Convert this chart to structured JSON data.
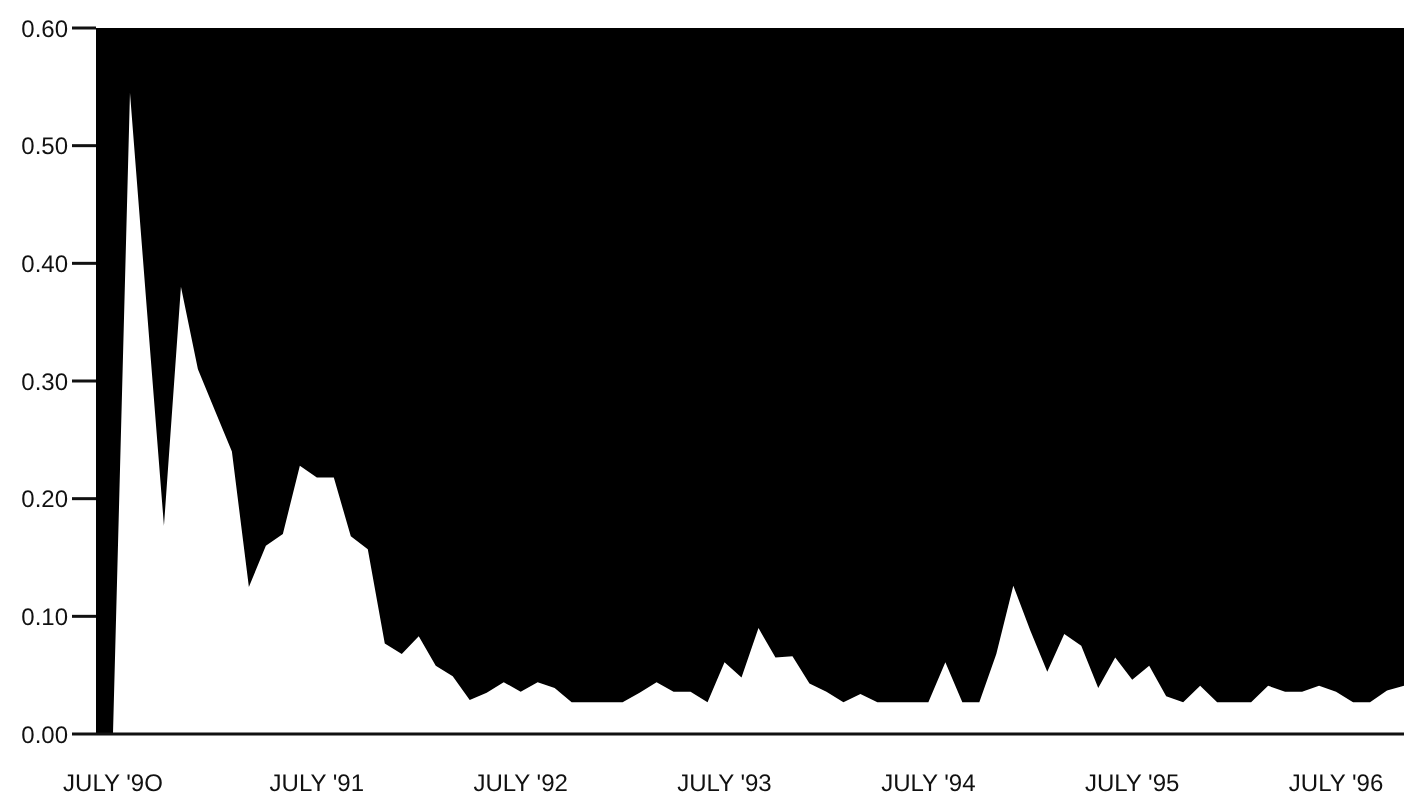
{
  "chart_data": {
    "type": "area",
    "color": "#ffffff",
    "x": [
      "1990-06",
      "1990-07",
      "1990-08",
      "1990-09",
      "1990-10",
      "1990-11",
      "1990-12",
      "1991-01",
      "1991-02",
      "1991-03",
      "1991-04",
      "1991-05",
      "1991-06",
      "1991-07",
      "1991-08",
      "1991-09",
      "1991-10",
      "1991-11",
      "1991-12",
      "1992-01",
      "1992-02",
      "1992-03",
      "1992-04",
      "1992-05",
      "1992-06",
      "1992-07",
      "1992-08",
      "1992-09",
      "1992-10",
      "1992-11",
      "1992-12",
      "1993-01",
      "1993-02",
      "1993-03",
      "1993-04",
      "1993-05",
      "1993-06",
      "1993-07",
      "1993-08",
      "1993-09",
      "1993-10",
      "1993-11",
      "1993-12",
      "1994-01",
      "1994-02",
      "1994-03",
      "1994-04",
      "1994-05",
      "1994-06",
      "1994-07",
      "1994-08",
      "1994-09",
      "1994-10",
      "1994-11",
      "1994-12",
      "1995-01",
      "1995-02",
      "1995-03",
      "1995-04",
      "1995-05",
      "1995-06",
      "1995-07",
      "1995-08",
      "1995-09",
      "1995-10",
      "1995-11",
      "1995-12",
      "1996-01",
      "1996-02",
      "1996-03",
      "1996-04",
      "1996-05",
      "1996-06",
      "1996-07",
      "1996-08",
      "1996-09",
      "1996-10",
      "1996-11"
    ],
    "values": [
      0,
      0,
      0.545,
      0.36,
      0.177,
      0.38,
      0.31,
      0.275,
      0.24,
      0.125,
      0.16,
      0.17,
      0.228,
      0.218,
      0.218,
      0.168,
      0.157,
      0.077,
      0.068,
      0.083,
      0.058,
      0.049,
      0.029,
      0.035,
      0.044,
      0.036,
      0.044,
      0.039,
      0.027,
      0.027,
      0.027,
      0.027,
      0.035,
      0.044,
      0.036,
      0.036,
      0.027,
      0.061,
      0.048,
      0.09,
      0.065,
      0.066,
      0.043,
      0.036,
      0.027,
      0.034,
      0.027,
      0.027,
      0.027,
      0.027,
      0.061,
      0.027,
      0.027,
      0.068,
      0.126,
      0.088,
      0.053,
      0.085,
      0.075,
      0.039,
      0.065,
      0.046,
      0.058,
      0.032,
      0.027,
      0.041,
      0.027,
      0.027,
      0.027,
      0.041,
      0.036,
      0.036,
      0.041,
      0.036,
      0.027,
      0.027,
      0.037,
      0.041
    ],
    "xlim": [
      "1990-06",
      "1996-11"
    ],
    "xticks": [
      {
        "value": "1990-07",
        "label": "JULY '9O"
      },
      {
        "value": "1991-07",
        "label": "JULY '91"
      },
      {
        "value": "1992-07",
        "label": "JULY '92"
      },
      {
        "value": "1993-07",
        "label": "JULY '93"
      },
      {
        "value": "1994-07",
        "label": "JULY '94"
      },
      {
        "value": "1995-07",
        "label": "JULY '95"
      },
      {
        "value": "1996-07",
        "label": "JULY '96"
      }
    ],
    "ylim": [
      0,
      0.6
    ],
    "yticks": [
      {
        "value": 0,
        "label": "0.00"
      },
      {
        "value": 0.1,
        "label": "0.10"
      },
      {
        "value": 0.2,
        "label": "0.20"
      },
      {
        "value": 0.3,
        "label": "0.30"
      },
      {
        "value": 0.4,
        "label": "0.40"
      },
      {
        "value": 0.5,
        "label": "0.50"
      },
      {
        "value": 0.6,
        "label": "0.60"
      }
    ],
    "bands": [
      {
        "axis": "y",
        "from": 0,
        "to": 0.6,
        "color": "#000000"
      }
    ],
    "grid": false,
    "legend": false
  }
}
